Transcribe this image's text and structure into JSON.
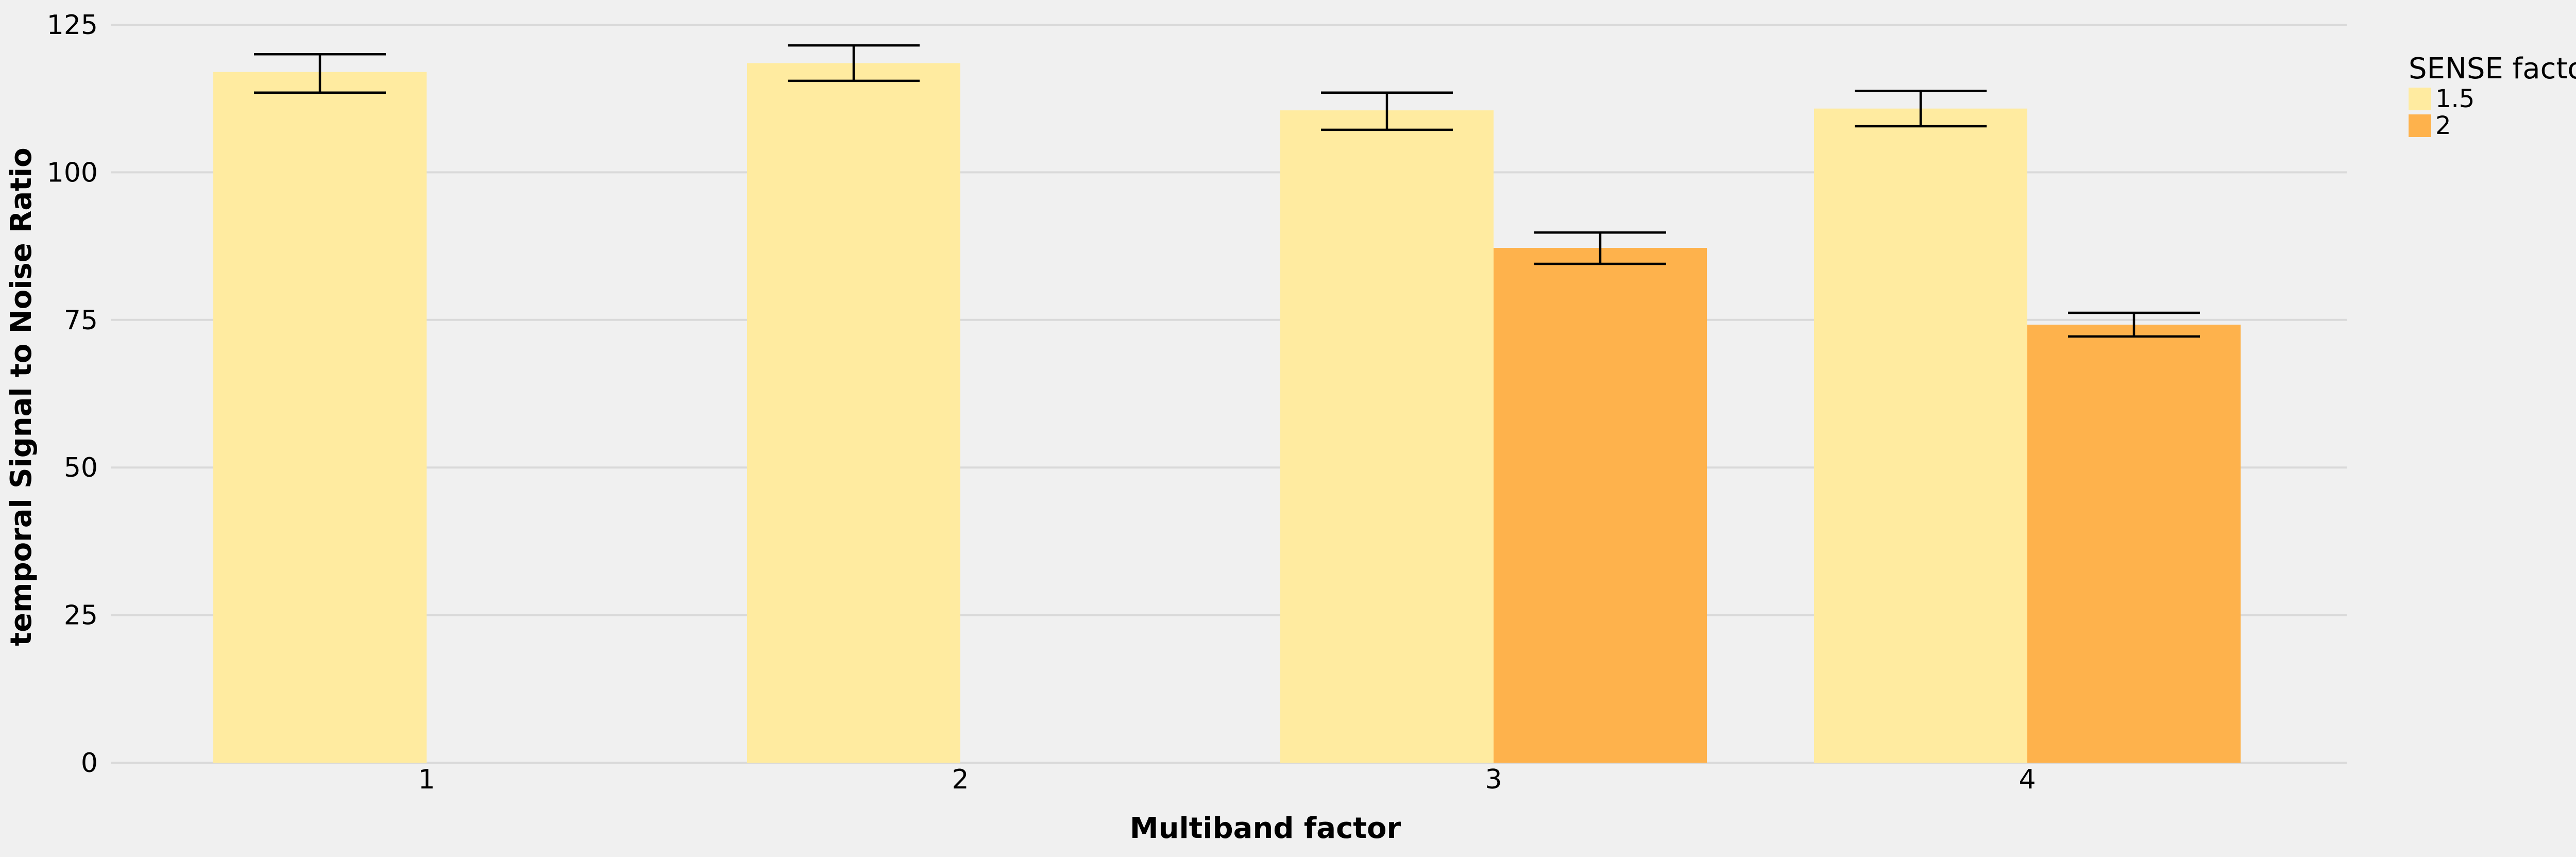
{
  "chart_data": {
    "type": "bar",
    "xlabel": "Multiband factor",
    "ylabel": "temporal Signal to Noise Ratio",
    "categories": [
      "1",
      "2",
      "3",
      "4"
    ],
    "ylim": [
      0,
      125
    ],
    "yticks": [
      0,
      25,
      50,
      75,
      100,
      125
    ],
    "grid": "horizontal",
    "legend": {
      "title": "SENSE factor",
      "position": "top-right"
    },
    "series": [
      {
        "name": "1.5",
        "color": "#ffeba0",
        "values": [
          117,
          118.5,
          110.5,
          110.8
        ],
        "error_low": [
          113.5,
          115.5,
          107.2,
          107.8
        ],
        "error_high": [
          120,
          121.5,
          113.5,
          113.8
        ]
      },
      {
        "name": "2",
        "color": "#feb24c",
        "values": [
          null,
          null,
          87.2,
          74.2
        ],
        "error_low": [
          null,
          null,
          84.5,
          72.2
        ],
        "error_high": [
          null,
          null,
          89.8,
          76.2
        ]
      }
    ]
  }
}
